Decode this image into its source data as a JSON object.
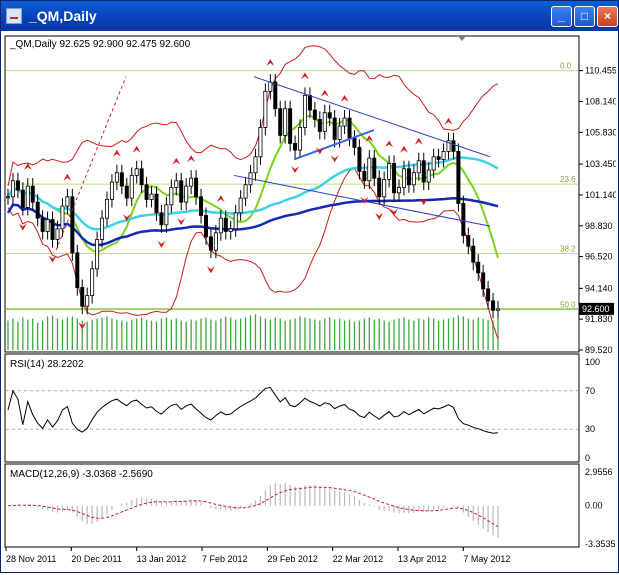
{
  "window": {
    "title": "_QM,Daily",
    "buttons": {
      "minimize": "_",
      "maximize": "□",
      "close": "×"
    }
  },
  "chart_data": [
    {
      "type": "candlestick",
      "name": "_QM,Daily",
      "header": "_QM,Daily  92.625 92.900 92.475 92.600",
      "ohlc_last": {
        "open": 92.625,
        "high": 92.9,
        "low": 92.475,
        "close": 92.6
      },
      "price_axis_ticks": [
        "110.455",
        "108.140",
        "105.830",
        "103.450",
        "101.140",
        "98.830",
        "96.520",
        "94.140",
        "91.830",
        "89.520"
      ],
      "ylim": [
        89.52,
        111.7
      ],
      "current_price": "92.600",
      "fib_levels": [
        {
          "label": "0.0",
          "price": 110.455
        },
        {
          "label": "23.6",
          "price": 101.95
        },
        {
          "label": "38.2",
          "price": 96.75
        },
        {
          "label": "50.0",
          "price": 92.55
        }
      ],
      "x_labels": [
        "28 Nov 2011",
        "20 Dec 2011",
        "13 Jan 2012",
        "7 Feb 2012",
        "29 Feb 2012",
        "22 Mar 2012",
        "13 Apr 2012",
        "7 May 2012"
      ],
      "close_series": [
        101.0,
        102.2,
        101.5,
        100.2,
        101.8,
        100.6,
        99.4,
        98.4,
        99.3,
        97.8,
        98.6,
        100.3,
        101.0,
        96.8,
        94.2,
        92.8,
        93.6,
        95.6,
        97.8,
        99.4,
        100.8,
        102.1,
        102.8,
        101.8,
        100.9,
        102.6,
        103.1,
        101.9,
        100.8,
        101.2,
        99.8,
        98.9,
        100.4,
        101.7,
        102.2,
        100.6,
        101.8,
        102.4,
        101.0,
        99.6,
        98.0,
        97.0,
        98.3,
        99.4,
        98.4,
        98.6,
        99.8,
        100.9,
        101.9,
        102.8,
        104.0,
        106.2,
        108.9,
        109.6,
        107.6,
        105.6,
        107.6,
        105.0,
        104.5,
        106.2,
        108.6,
        107.5,
        106.8,
        105.9,
        107.3,
        106.9,
        105.3,
        106.3,
        106.9,
        105.4,
        104.7,
        102.9,
        102.2,
        103.9,
        102.4,
        101.0,
        102.3,
        103.5,
        101.3,
        101.7,
        103.1,
        101.9,
        102.8,
        103.7,
        102.1,
        103.0,
        104.0,
        103.8,
        104.4,
        105.2,
        104.4,
        100.5,
        98.1,
        97.3,
        96.1,
        95.3,
        94.1,
        93.2,
        92.5,
        92.6
      ],
      "volume": [
        28,
        30,
        27,
        31,
        29,
        30,
        26,
        28,
        32,
        33,
        30,
        29,
        31,
        32,
        30,
        28,
        27,
        29,
        30,
        31,
        32,
        30,
        29,
        28,
        27,
        29,
        30,
        31,
        29,
        28,
        27,
        30,
        31,
        29,
        30,
        28,
        27,
        29,
        28,
        30,
        31,
        29,
        28,
        30,
        32,
        31,
        29,
        30,
        31,
        33,
        34,
        32,
        30,
        29,
        31,
        30,
        28,
        29,
        30,
        32,
        31,
        30,
        29,
        28,
        30,
        31,
        29,
        30,
        28,
        29,
        27,
        28,
        30,
        31,
        29,
        30,
        28,
        27,
        29,
        30,
        31,
        29,
        28,
        30,
        29,
        31,
        30,
        28,
        29,
        30,
        31,
        33,
        32,
        30,
        29,
        31,
        30,
        29,
        28,
        30
      ]
    },
    {
      "type": "line",
      "name": "RSI(14)",
      "header": "RSI(14) 28.2202",
      "ticks": [
        "100",
        "70",
        "30",
        "0"
      ],
      "ylim": [
        0,
        100
      ]
    },
    {
      "type": "bar+line",
      "name": "MACD(12,26,9)",
      "header": "MACD(12,26,9) -3.0368 -2.5690",
      "ticks": [
        "2.9556",
        "0.00",
        "-3.3535"
      ],
      "ylim": [
        -3.3535,
        2.9556
      ]
    }
  ]
}
